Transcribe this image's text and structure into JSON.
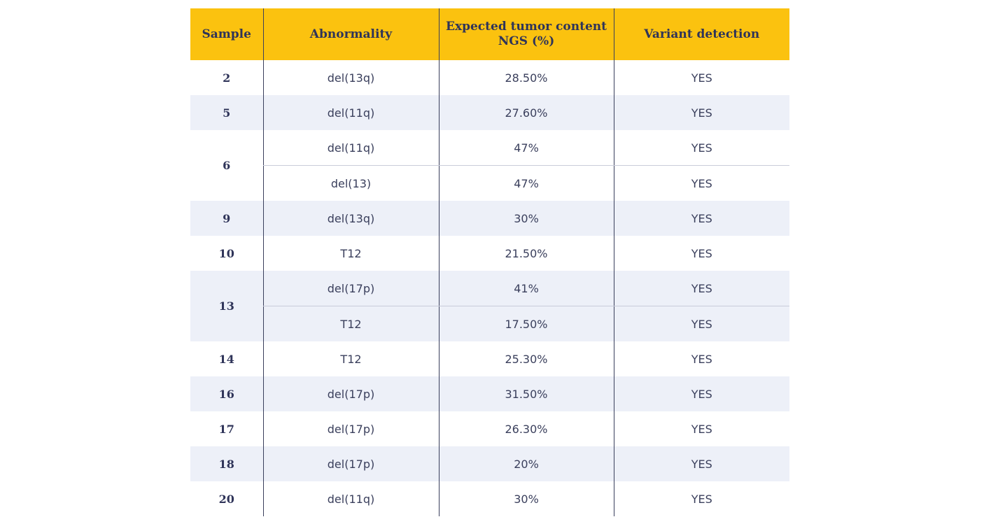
{
  "table": {
    "headers": {
      "sample": "Sample",
      "abnormality": "Abnormality",
      "tumor_line1": "Expected tumor content",
      "tumor_line2": "NGS (%)",
      "variant": "Variant detection"
    },
    "rows": [
      {
        "sample": "2",
        "abnormality": "del(13q)",
        "tumor": "28.50%",
        "variant": "YES"
      },
      {
        "sample": "5",
        "abnormality": "del(11q)",
        "tumor": "27.60%",
        "variant": "YES"
      },
      {
        "sample": "6",
        "abnormality": "del(11q)",
        "tumor": "47%",
        "variant": "YES"
      },
      {
        "sample": "",
        "abnormality": "del(13)",
        "tumor": "47%",
        "variant": "YES"
      },
      {
        "sample": "9",
        "abnormality": "del(13q)",
        "tumor": "30%",
        "variant": "YES"
      },
      {
        "sample": "10",
        "abnormality": "T12",
        "tumor": "21.50%",
        "variant": "YES"
      },
      {
        "sample": "13",
        "abnormality": "del(17p)",
        "tumor": "41%",
        "variant": "YES"
      },
      {
        "sample": "",
        "abnormality": "T12",
        "tumor": "17.50%",
        "variant": "YES"
      },
      {
        "sample": "14",
        "abnormality": "T12",
        "tumor": "25.30%",
        "variant": "YES"
      },
      {
        "sample": "16",
        "abnormality": "del(17p)",
        "tumor": "31.50%",
        "variant": "YES"
      },
      {
        "sample": "17",
        "abnormality": "del(17p)",
        "tumor": "26.30%",
        "variant": "YES"
      },
      {
        "sample": "18",
        "abnormality": "del(17p)",
        "tumor": "20%",
        "variant": "YES"
      },
      {
        "sample": "20",
        "abnormality": "del(11q)",
        "tumor": "30%",
        "variant": "YES"
      }
    ]
  },
  "colors": {
    "header_bg": "#fbc20f",
    "stripe_bg": "#edf0f8",
    "text": "#3a3f5c"
  }
}
